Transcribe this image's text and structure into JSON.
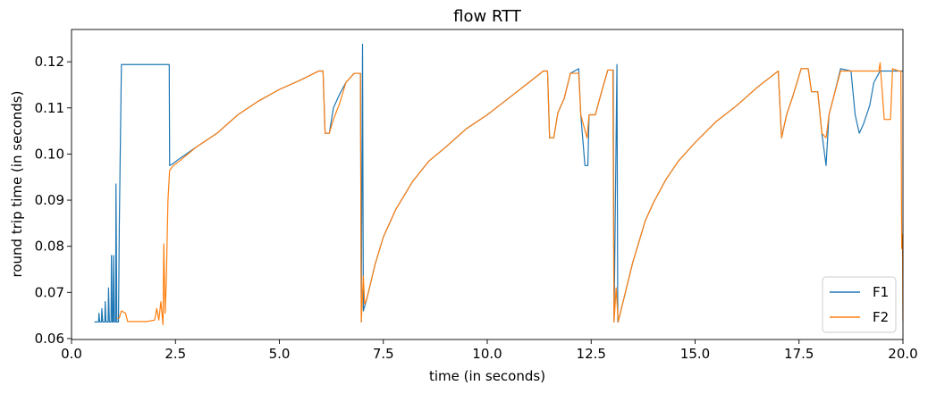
{
  "chart_data": {
    "type": "line",
    "title": "flow RTT",
    "xlabel": "time (in seconds)",
    "ylabel": "round trip time (in seconds)",
    "xlim": [
      0.0,
      20.0
    ],
    "ylim": [
      0.0598,
      0.127
    ],
    "x_ticks": [
      "0.0",
      "2.5",
      "5.0",
      "7.5",
      "10.0",
      "12.5",
      "15.0",
      "17.5",
      "20.0"
    ],
    "y_ticks": [
      "0.06",
      "0.07",
      "0.08",
      "0.09",
      "0.10",
      "0.11",
      "0.12"
    ],
    "grid": false,
    "legend_position": "lower-right",
    "series": [
      {
        "name": "F1",
        "color": "#1f77b4",
        "points": [
          [
            0.55,
            0.0636
          ],
          [
            0.65,
            0.0636
          ],
          [
            0.66,
            0.0655
          ],
          [
            0.68,
            0.0636
          ],
          [
            0.72,
            0.0636
          ],
          [
            0.73,
            0.0665
          ],
          [
            0.75,
            0.0636
          ],
          [
            0.8,
            0.0636
          ],
          [
            0.81,
            0.068
          ],
          [
            0.83,
            0.0636
          ],
          [
            0.88,
            0.0636
          ],
          [
            0.89,
            0.071
          ],
          [
            0.91,
            0.0636
          ],
          [
            0.95,
            0.0636
          ],
          [
            0.96,
            0.078
          ],
          [
            0.98,
            0.0636
          ],
          [
            1.0,
            0.0636
          ],
          [
            1.01,
            0.078
          ],
          [
            1.03,
            0.0636
          ],
          [
            1.06,
            0.0636
          ],
          [
            1.07,
            0.0935
          ],
          [
            1.09,
            0.0636
          ],
          [
            1.13,
            0.0636
          ],
          [
            1.15,
            0.085
          ],
          [
            1.2,
            0.1194
          ],
          [
            1.3,
            0.1194
          ],
          [
            2.35,
            0.1194
          ],
          [
            2.36,
            0.0975
          ],
          [
            2.45,
            0.098
          ],
          [
            2.6,
            0.099
          ],
          [
            3.0,
            0.1015
          ],
          [
            3.5,
            0.1045
          ],
          [
            4.0,
            0.1085
          ],
          [
            4.5,
            0.1115
          ],
          [
            5.0,
            0.114
          ],
          [
            5.5,
            0.116
          ],
          [
            5.95,
            0.118
          ],
          [
            6.05,
            0.118
          ],
          [
            6.1,
            0.1045
          ],
          [
            6.2,
            0.1045
          ],
          [
            6.3,
            0.11
          ],
          [
            6.45,
            0.113
          ],
          [
            6.6,
            0.1155
          ],
          [
            6.8,
            0.1175
          ],
          [
            6.95,
            0.1175
          ],
          [
            6.97,
            0.0636
          ],
          [
            7.0,
            0.1238
          ],
          [
            7.02,
            0.066
          ],
          [
            7.1,
            0.0685
          ],
          [
            7.3,
            0.076
          ],
          [
            7.5,
            0.082
          ],
          [
            7.8,
            0.088
          ],
          [
            8.2,
            0.094
          ],
          [
            8.6,
            0.0985
          ],
          [
            9.0,
            0.1015
          ],
          [
            9.5,
            0.1055
          ],
          [
            10.0,
            0.1085
          ],
          [
            10.5,
            0.112
          ],
          [
            11.0,
            0.1155
          ],
          [
            11.35,
            0.118
          ],
          [
            11.45,
            0.118
          ],
          [
            11.5,
            0.1035
          ],
          [
            11.6,
            0.1035
          ],
          [
            11.7,
            0.109
          ],
          [
            11.85,
            0.112
          ],
          [
            12.0,
            0.1175
          ],
          [
            12.2,
            0.1185
          ],
          [
            12.25,
            0.1085
          ],
          [
            12.35,
            0.0975
          ],
          [
            12.42,
            0.0975
          ],
          [
            12.45,
            0.1085
          ],
          [
            12.6,
            0.1085
          ],
          [
            12.75,
            0.1135
          ],
          [
            12.9,
            0.1182
          ],
          [
            13.03,
            0.1182
          ],
          [
            13.05,
            0.0636
          ],
          [
            13.12,
            0.1194
          ],
          [
            13.14,
            0.0636
          ],
          [
            13.2,
            0.0655
          ],
          [
            13.5,
            0.0765
          ],
          [
            13.8,
            0.0855
          ],
          [
            14.0,
            0.0895
          ],
          [
            14.3,
            0.0945
          ],
          [
            14.6,
            0.0985
          ],
          [
            15.0,
            0.1025
          ],
          [
            15.5,
            0.107
          ],
          [
            16.0,
            0.1105
          ],
          [
            16.5,
            0.1145
          ],
          [
            17.0,
            0.118
          ],
          [
            17.08,
            0.1035
          ],
          [
            17.2,
            0.1085
          ],
          [
            17.35,
            0.1125
          ],
          [
            17.55,
            0.1185
          ],
          [
            17.72,
            0.1185
          ],
          [
            17.8,
            0.1135
          ],
          [
            17.95,
            0.1135
          ],
          [
            18.05,
            0.1045
          ],
          [
            18.15,
            0.0975
          ],
          [
            18.22,
            0.1085
          ],
          [
            18.35,
            0.113
          ],
          [
            18.5,
            0.1185
          ],
          [
            18.75,
            0.118
          ],
          [
            18.85,
            0.1085
          ],
          [
            18.95,
            0.1045
          ],
          [
            19.05,
            0.1065
          ],
          [
            19.2,
            0.1105
          ],
          [
            19.3,
            0.1155
          ],
          [
            19.45,
            0.118
          ],
          [
            19.6,
            0.118
          ],
          [
            20.0,
            0.118
          ]
        ]
      },
      {
        "name": "F2",
        "color": "#ff7f0e",
        "points": [
          [
            1.1,
            0.0643
          ],
          [
            1.15,
            0.0645
          ],
          [
            1.2,
            0.066
          ],
          [
            1.3,
            0.0655
          ],
          [
            1.35,
            0.0637
          ],
          [
            1.6,
            0.0637
          ],
          [
            1.8,
            0.0637
          ],
          [
            2.0,
            0.064
          ],
          [
            2.05,
            0.0665
          ],
          [
            2.1,
            0.064
          ],
          [
            2.15,
            0.068
          ],
          [
            2.2,
            0.063
          ],
          [
            2.22,
            0.0805
          ],
          [
            2.25,
            0.0655
          ],
          [
            2.28,
            0.0725
          ],
          [
            2.32,
            0.09
          ],
          [
            2.36,
            0.0965
          ],
          [
            2.45,
            0.0975
          ],
          [
            2.6,
            0.0985
          ],
          [
            3.0,
            0.1015
          ],
          [
            3.5,
            0.1045
          ],
          [
            4.0,
            0.1085
          ],
          [
            4.5,
            0.1115
          ],
          [
            5.0,
            0.114
          ],
          [
            5.5,
            0.116
          ],
          [
            5.95,
            0.118
          ],
          [
            6.05,
            0.118
          ],
          [
            6.1,
            0.1045
          ],
          [
            6.2,
            0.1045
          ],
          [
            6.3,
            0.1075
          ],
          [
            6.45,
            0.111
          ],
          [
            6.6,
            0.1155
          ],
          [
            6.8,
            0.1175
          ],
          [
            6.95,
            0.1175
          ],
          [
            6.97,
            0.0636
          ],
          [
            7.02,
            0.0735
          ],
          [
            7.05,
            0.0675
          ],
          [
            7.1,
            0.0685
          ],
          [
            7.3,
            0.076
          ],
          [
            7.5,
            0.082
          ],
          [
            7.8,
            0.088
          ],
          [
            8.2,
            0.094
          ],
          [
            8.6,
            0.0985
          ],
          [
            9.0,
            0.1015
          ],
          [
            9.5,
            0.1055
          ],
          [
            10.0,
            0.1085
          ],
          [
            10.5,
            0.112
          ],
          [
            11.0,
            0.1155
          ],
          [
            11.35,
            0.118
          ],
          [
            11.45,
            0.118
          ],
          [
            11.5,
            0.1035
          ],
          [
            11.6,
            0.1035
          ],
          [
            11.7,
            0.109
          ],
          [
            11.85,
            0.112
          ],
          [
            12.0,
            0.1175
          ],
          [
            12.2,
            0.1175
          ],
          [
            12.25,
            0.1085
          ],
          [
            12.4,
            0.1035
          ],
          [
            12.45,
            0.1085
          ],
          [
            12.6,
            0.1085
          ],
          [
            12.75,
            0.1135
          ],
          [
            12.9,
            0.1182
          ],
          [
            13.02,
            0.1182
          ],
          [
            13.05,
            0.0636
          ],
          [
            13.1,
            0.071
          ],
          [
            13.15,
            0.0636
          ],
          [
            13.2,
            0.0655
          ],
          [
            13.5,
            0.0765
          ],
          [
            13.8,
            0.0855
          ],
          [
            14.0,
            0.0895
          ],
          [
            14.3,
            0.0945
          ],
          [
            14.6,
            0.0985
          ],
          [
            15.0,
            0.1025
          ],
          [
            15.5,
            0.107
          ],
          [
            16.0,
            0.1105
          ],
          [
            16.5,
            0.1145
          ],
          [
            17.0,
            0.118
          ],
          [
            17.08,
            0.1035
          ],
          [
            17.2,
            0.1085
          ],
          [
            17.35,
            0.1125
          ],
          [
            17.55,
            0.1185
          ],
          [
            17.72,
            0.1185
          ],
          [
            17.8,
            0.1135
          ],
          [
            17.95,
            0.1135
          ],
          [
            18.05,
            0.1045
          ],
          [
            18.15,
            0.1035
          ],
          [
            18.22,
            0.1085
          ],
          [
            18.35,
            0.113
          ],
          [
            18.5,
            0.118
          ],
          [
            18.7,
            0.118
          ],
          [
            19.2,
            0.118
          ],
          [
            19.42,
            0.118
          ],
          [
            19.45,
            0.1198
          ],
          [
            19.55,
            0.1075
          ],
          [
            19.7,
            0.1075
          ],
          [
            19.75,
            0.1185
          ],
          [
            19.9,
            0.118
          ],
          [
            19.95,
            0.118
          ],
          [
            19.97,
            0.0795
          ],
          [
            19.99,
            0.0825
          ],
          [
            20.0,
            0.0636
          ]
        ]
      }
    ]
  }
}
